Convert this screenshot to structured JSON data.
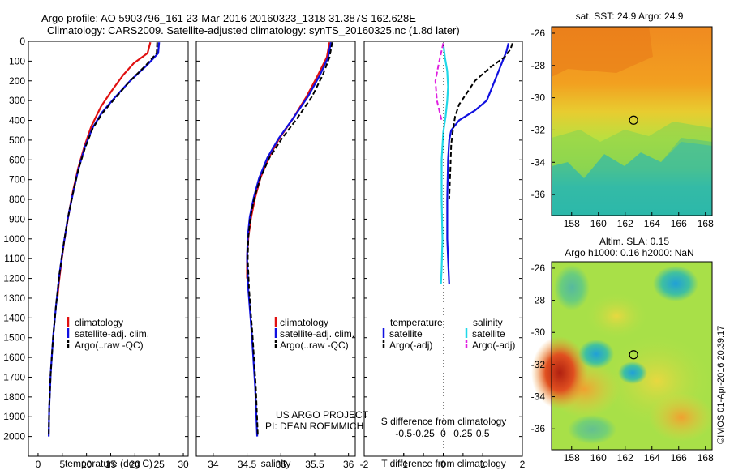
{
  "header": {
    "line1": "Argo profile: AO 5903796_161 23-Mar-2016 20160323_1318 31.387S 162.628E",
    "line2": "Climatology: CARS2009. Satellite-adjusted climatology: synTS_20160325.nc (1.8d later)"
  },
  "credit": "©IMOS 01-Apr-2016 20:39:17",
  "colors": {
    "climatology": "#e01010",
    "satellite": "#1010e0",
    "argo": "#000000",
    "salinity_satellite": "#20d8e8",
    "salinity_argo": "#e020e0"
  },
  "chart_data": [
    {
      "type": "line",
      "panel": "temperature",
      "xlabel": "temperature (deg C)",
      "ylabel": "",
      "xlim": [
        -2,
        31
      ],
      "ylim": [
        2100,
        0
      ],
      "xticks": [
        0,
        5,
        10,
        15,
        20,
        25,
        30
      ],
      "yticks": [
        0,
        100,
        200,
        300,
        400,
        500,
        600,
        700,
        800,
        900,
        1000,
        1100,
        1200,
        1300,
        1400,
        1500,
        1600,
        1700,
        1800,
        1900,
        2000
      ],
      "legend": [
        "climatology",
        "satellite-adj. clim.",
        "Argo(..raw -QC)"
      ],
      "series": [
        {
          "name": "climatology",
          "color_key": "climatology",
          "style": "solid",
          "x": [
            23.2,
            22.6,
            19.8,
            17.6,
            15.2,
            13.0,
            11.0,
            9.6,
            8.3,
            7.2,
            6.2,
            5.4,
            4.8,
            4.3,
            4.0
          ],
          "y": [
            5,
            60,
            110,
            170,
            250,
            330,
            430,
            530,
            640,
            760,
            890,
            1010,
            1120,
            1220,
            1300
          ]
        },
        {
          "name": "satellite-adj. clim.",
          "color_key": "satellite",
          "style": "solid",
          "x": [
            25.0,
            24.8,
            22.5,
            19.0,
            16.0,
            13.2,
            11.2,
            9.6,
            8.3,
            7.2,
            6.1,
            5.2,
            4.4,
            3.7,
            3.1,
            2.6,
            2.3,
            2.2
          ],
          "y": [
            5,
            60,
            120,
            200,
            280,
            360,
            440,
            540,
            650,
            770,
            900,
            1040,
            1180,
            1340,
            1500,
            1680,
            1850,
            2000
          ]
        },
        {
          "name": "Argo(..raw -QC)",
          "color_key": "argo",
          "style": "dashed",
          "x": [
            24.6,
            24.5,
            22.3,
            19.0,
            16.2,
            13.4,
            11.3,
            9.7,
            8.3,
            7.2,
            6.1,
            5.2,
            4.4,
            3.7,
            3.1,
            2.6,
            2.3,
            2.2
          ],
          "y": [
            5,
            60,
            120,
            200,
            280,
            360,
            440,
            540,
            650,
            770,
            900,
            1040,
            1180,
            1340,
            1500,
            1680,
            1850,
            2000
          ]
        }
      ]
    },
    {
      "type": "line",
      "panel": "salinity",
      "xlabel": "salinity",
      "ylabel": "",
      "xlim": [
        33.75,
        36.1
      ],
      "ylim": [
        2100,
        0
      ],
      "xticks": [
        34,
        34.5,
        35,
        35.5,
        36
      ],
      "legend": [
        "climatology",
        "satellite-adj. clim.",
        "Argo(..raw -QC)"
      ],
      "annotation": [
        "US ARGO PROJECT",
        "PI: DEAN ROEMMICH"
      ],
      "series": [
        {
          "name": "climatology",
          "color_key": "climatology",
          "style": "solid",
          "x": [
            35.72,
            35.68,
            35.55,
            35.38,
            35.18,
            34.98,
            34.82,
            34.7,
            34.62,
            34.56,
            34.52,
            34.5,
            34.5
          ],
          "y": [
            5,
            80,
            170,
            280,
            390,
            490,
            590,
            690,
            790,
            890,
            990,
            1090,
            1200
          ]
        },
        {
          "name": "satellite-adj. clim.",
          "color_key": "satellite",
          "style": "solid",
          "x": [
            35.74,
            35.7,
            35.58,
            35.4,
            35.18,
            34.97,
            34.8,
            34.68,
            34.6,
            34.54,
            34.51,
            34.5,
            34.52,
            34.57,
            34.62,
            34.65
          ],
          "y": [
            5,
            80,
            170,
            280,
            390,
            490,
            590,
            690,
            790,
            890,
            990,
            1100,
            1260,
            1480,
            1750,
            2000
          ]
        },
        {
          "name": "Argo(..raw -QC)",
          "color_key": "argo",
          "style": "dashed",
          "x": [
            35.76,
            35.72,
            35.62,
            35.46,
            35.24,
            35.02,
            34.83,
            34.7,
            34.61,
            34.55,
            34.52,
            34.51,
            34.53,
            34.58,
            34.63,
            34.66
          ],
          "y": [
            5,
            80,
            170,
            280,
            390,
            490,
            590,
            690,
            790,
            890,
            990,
            1100,
            1260,
            1480,
            1750,
            2000
          ]
        }
      ]
    },
    {
      "type": "line",
      "panel": "difference",
      "xlabel": "T difference from climatology",
      "x2label": "S difference from climatology",
      "xlim": [
        -2,
        2
      ],
      "x2lim": [
        -1,
        1
      ],
      "ylim": [
        2100,
        0
      ],
      "xticks": [
        -2,
        -1,
        0,
        1,
        2
      ],
      "x2ticks": [
        -0.5,
        -0.25,
        0,
        0.25,
        0.5
      ],
      "legend_headers": [
        "temperature",
        "salinity"
      ],
      "legend": [
        "satellite",
        "Argo(-adj)",
        "satellite",
        "Argo(-adj)"
      ],
      "series": [
        {
          "name": "satellite",
          "color_key": "satellite",
          "style": "solid",
          "axis": "T",
          "x": [
            1.65,
            1.6,
            1.5,
            1.4,
            1.3,
            1.2,
            1.1,
            0.8,
            0.4,
            0.2,
            0.15,
            0.12,
            0.1,
            0.1,
            0.12,
            0.15
          ],
          "y": [
            10,
            50,
            100,
            150,
            200,
            250,
            300,
            350,
            400,
            450,
            500,
            600,
            800,
            1000,
            1100,
            1230
          ]
        },
        {
          "name": "Argo(-adj)",
          "color_key": "argo",
          "style": "dashed",
          "axis": "T",
          "x": [
            1.75,
            1.7,
            1.55,
            1.2,
            0.8,
            0.6,
            0.4,
            0.3,
            0.25,
            0.2,
            0.18,
            0.15
          ],
          "y": [
            10,
            40,
            80,
            130,
            200,
            260,
            320,
            380,
            440,
            520,
            640,
            800
          ]
        },
        {
          "name": "satellite",
          "color_key": "salinity_satellite",
          "style": "solid",
          "axis": "S",
          "x": [
            0.0,
            0.02,
            0.05,
            0.06,
            0.05,
            0.03,
            0.0,
            -0.02,
            -0.02,
            -0.01,
            -0.02,
            -0.03
          ],
          "y": [
            10,
            80,
            150,
            230,
            300,
            380,
            460,
            600,
            800,
            1000,
            1150,
            1230
          ]
        },
        {
          "name": "Argo(-adj)",
          "color_key": "salinity_argo",
          "style": "dashed",
          "axis": "S",
          "x": [
            0.0,
            -0.05,
            -0.1,
            -0.08,
            -0.02
          ],
          "y": [
            10,
            100,
            200,
            300,
            400
          ]
        }
      ]
    },
    {
      "type": "heatmap",
      "panel": "sst-map",
      "title": "sat. SST: 24.9 Argo: 24.9",
      "xlim": [
        156.5,
        168.5
      ],
      "ylim": [
        -37.3,
        -25.6
      ],
      "xticks": [
        158,
        160,
        162,
        164,
        166,
        168
      ],
      "yticks": [
        -26,
        -28,
        -30,
        -32,
        -34,
        -36
      ],
      "marker": {
        "lon": 162.628,
        "lat": -31.387
      }
    },
    {
      "type": "heatmap",
      "panel": "sla-map",
      "title": "Altim. SLA: 0.15",
      "subtitle": "Argo h1000: 0.16 h2000: NaN",
      "xlim": [
        156.5,
        168.5
      ],
      "ylim": [
        -37.3,
        -25.6
      ],
      "xticks": [
        158,
        160,
        162,
        164,
        166,
        168
      ],
      "yticks": [
        -26,
        -28,
        -30,
        -32,
        -34,
        -36
      ],
      "marker": {
        "lon": 162.628,
        "lat": -31.387
      }
    }
  ]
}
